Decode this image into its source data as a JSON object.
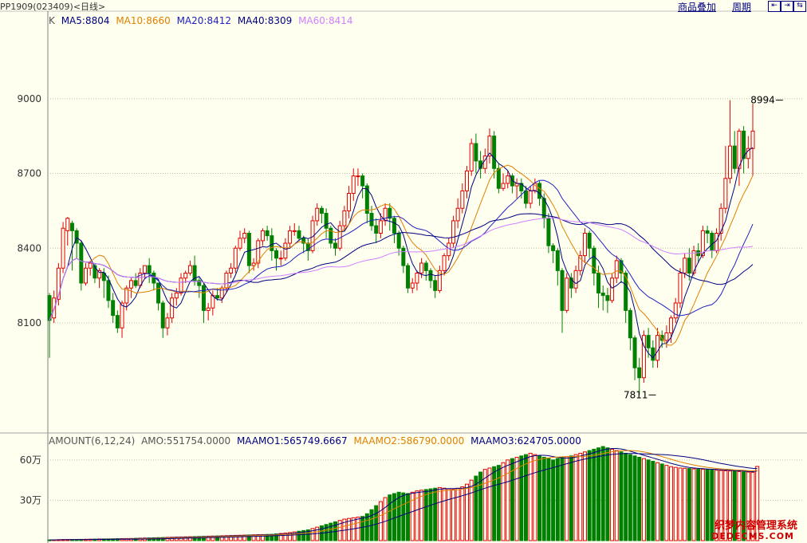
{
  "header": {
    "symbol": "PP1909(023409)<日线>",
    "overlay_link": "商品叠加",
    "period_link": "周期",
    "nav_buttons": [
      "⇤",
      "⇥",
      "⇆"
    ]
  },
  "price_legend": {
    "k": "K",
    "items": [
      {
        "text": "MA5:8804",
        "color": "#000080"
      },
      {
        "text": "MA10:8660",
        "color": "#e08000"
      },
      {
        "text": "MA20:8412",
        "color": "#2020c0"
      },
      {
        "text": "MA40:8309",
        "color": "#000080"
      },
      {
        "text": "MA60:8414",
        "color": "#d080ff"
      }
    ]
  },
  "volume_legend": {
    "items": [
      {
        "text": "AMOUNT(6,12,24)",
        "color": "#555555"
      },
      {
        "text": "AMO:551754.0000",
        "color": "#555555"
      },
      {
        "text": "MAAMO1:565749.6667",
        "color": "#000080"
      },
      {
        "text": "MAAMO2:586790.0000",
        "color": "#e08000"
      },
      {
        "text": "MAAMO3:624705.0000",
        "color": "#000080"
      }
    ]
  },
  "watermark": {
    "line1": "织梦内容管理系统",
    "line2": "DEDECMS.COM"
  },
  "colors": {
    "up": "#e00000",
    "down": "#008000",
    "grid": "#c0c0a0",
    "bg": "#fffff0"
  },
  "chart_data": [
    {
      "type": "candlestick",
      "ylim": [
        7700,
        9300
      ],
      "yticks": [
        8100,
        8400,
        8700,
        9000
      ],
      "ytick_labels": [
        "8100",
        "8400",
        "8700",
        "9000"
      ],
      "annotations": [
        {
          "text": "8994",
          "x": 162,
          "y": 8994
        },
        {
          "text": "7811",
          "x": 134,
          "y": 7811
        }
      ],
      "candles": [
        [
          8210,
          8110,
          8220,
          7960
        ],
        [
          8120,
          8200,
          8230,
          8100
        ],
        [
          8195,
          8320,
          8340,
          8170
        ],
        [
          8320,
          8480,
          8505,
          8300
        ],
        [
          8470,
          8520,
          8525,
          8410
        ],
        [
          8500,
          8470,
          8510,
          8310
        ],
        [
          8470,
          8420,
          8480,
          8360
        ],
        [
          8420,
          8260,
          8430,
          8230
        ],
        [
          8260,
          8320,
          8340,
          8250
        ],
        [
          8320,
          8340,
          8350,
          8290
        ],
        [
          8330,
          8280,
          8340,
          8260
        ],
        [
          8280,
          8310,
          8320,
          8240
        ],
        [
          8300,
          8270,
          8320,
          8200
        ],
        [
          8270,
          8190,
          8290,
          8160
        ],
        [
          8190,
          8130,
          8220,
          8100
        ],
        [
          8130,
          8080,
          8150,
          8060
        ],
        [
          8080,
          8180,
          8190,
          8040
        ],
        [
          8180,
          8240,
          8250,
          8150
        ],
        [
          8240,
          8270,
          8280,
          8200
        ],
        [
          8270,
          8250,
          8300,
          8240
        ],
        [
          8250,
          8300,
          8320,
          8240
        ],
        [
          8300,
          8330,
          8330,
          8280
        ],
        [
          8330,
          8300,
          8360,
          8260
        ],
        [
          8300,
          8260,
          8310,
          8230
        ],
        [
          8260,
          8180,
          8260,
          8150
        ],
        [
          8180,
          8080,
          8190,
          8040
        ],
        [
          8080,
          8120,
          8140,
          8050
        ],
        [
          8120,
          8200,
          8220,
          8100
        ],
        [
          8200,
          8220,
          8240,
          8170
        ],
        [
          8220,
          8280,
          8300,
          8210
        ],
        [
          8280,
          8300,
          8310,
          8260
        ],
        [
          8300,
          8330,
          8350,
          8290
        ],
        [
          8330,
          8270,
          8370,
          8250
        ],
        [
          8270,
          8250,
          8280,
          8200
        ],
        [
          8250,
          8150,
          8260,
          8100
        ],
        [
          8150,
          8160,
          8180,
          8110
        ],
        [
          8160,
          8210,
          8230,
          8130
        ],
        [
          8210,
          8200,
          8240,
          8190
        ],
        [
          8200,
          8240,
          8250,
          8180
        ],
        [
          8240,
          8300,
          8310,
          8220
        ],
        [
          8300,
          8320,
          8340,
          8280
        ],
        [
          8320,
          8400,
          8410,
          8300
        ],
        [
          8400,
          8440,
          8470,
          8390
        ],
        [
          8440,
          8460,
          8480,
          8420
        ],
        [
          8460,
          8330,
          8470,
          8300
        ],
        [
          8330,
          8340,
          8360,
          8310
        ],
        [
          8340,
          8430,
          8440,
          8320
        ],
        [
          8430,
          8470,
          8480,
          8410
        ],
        [
          8470,
          8450,
          8490,
          8430
        ],
        [
          8450,
          8390,
          8480,
          8350
        ],
        [
          8390,
          8360,
          8400,
          8310
        ],
        [
          8360,
          8360,
          8390,
          8330
        ],
        [
          8360,
          8420,
          8440,
          8350
        ],
        [
          8420,
          8470,
          8490,
          8400
        ],
        [
          8470,
          8470,
          8500,
          8450
        ],
        [
          8470,
          8440,
          8490,
          8430
        ],
        [
          8440,
          8420,
          8450,
          8380
        ],
        [
          8420,
          8390,
          8440,
          8350
        ],
        [
          8390,
          8510,
          8530,
          8380
        ],
        [
          8510,
          8560,
          8580,
          8490
        ],
        [
          8560,
          8540,
          8570,
          8500
        ],
        [
          8540,
          8480,
          8560,
          8440
        ],
        [
          8480,
          8420,
          8490,
          8400
        ],
        [
          8420,
          8400,
          8440,
          8370
        ],
        [
          8400,
          8490,
          8510,
          8390
        ],
        [
          8490,
          8550,
          8570,
          8470
        ],
        [
          8550,
          8620,
          8650,
          8520
        ],
        [
          8620,
          8690,
          8720,
          8590
        ],
        [
          8690,
          8690,
          8720,
          8650
        ],
        [
          8690,
          8650,
          8700,
          8600
        ],
        [
          8650,
          8540,
          8660,
          8500
        ],
        [
          8540,
          8490,
          8570,
          8470
        ],
        [
          8490,
          8460,
          8520,
          8420
        ],
        [
          8460,
          8510,
          8540,
          8440
        ],
        [
          8510,
          8560,
          8580,
          8490
        ],
        [
          8560,
          8520,
          8580,
          8470
        ],
        [
          8520,
          8460,
          8530,
          8420
        ],
        [
          8460,
          8400,
          8470,
          8370
        ],
        [
          8400,
          8330,
          8410,
          8300
        ],
        [
          8330,
          8240,
          8340,
          8220
        ],
        [
          8240,
          8260,
          8280,
          8220
        ],
        [
          8260,
          8300,
          8310,
          8230
        ],
        [
          8300,
          8340,
          8360,
          8280
        ],
        [
          8340,
          8310,
          8350,
          8270
        ],
        [
          8310,
          8270,
          8320,
          8240
        ],
        [
          8270,
          8230,
          8290,
          8200
        ],
        [
          8230,
          8310,
          8330,
          8220
        ],
        [
          8310,
          8370,
          8380,
          8290
        ],
        [
          8370,
          8420,
          8440,
          8350
        ],
        [
          8420,
          8510,
          8530,
          8400
        ],
        [
          8510,
          8560,
          8600,
          8480
        ],
        [
          8560,
          8630,
          8660,
          8540
        ],
        [
          8630,
          8710,
          8730,
          8600
        ],
        [
          8710,
          8820,
          8840,
          8690
        ],
        [
          8820,
          8750,
          8860,
          8700
        ],
        [
          8750,
          8720,
          8790,
          8680
        ],
        [
          8720,
          8770,
          8800,
          8700
        ],
        [
          8770,
          8850,
          8880,
          8740
        ],
        [
          8850,
          8720,
          8870,
          8680
        ],
        [
          8720,
          8640,
          8740,
          8620
        ],
        [
          8640,
          8660,
          8700,
          8630
        ],
        [
          8660,
          8690,
          8710,
          8640
        ],
        [
          8690,
          8650,
          8700,
          8620
        ],
        [
          8650,
          8660,
          8680,
          8600
        ],
        [
          8660,
          8630,
          8680,
          8600
        ],
        [
          8630,
          8580,
          8650,
          8560
        ],
        [
          8580,
          8630,
          8650,
          8560
        ],
        [
          8630,
          8660,
          8680,
          8620
        ],
        [
          8660,
          8600,
          8670,
          8570
        ],
        [
          8600,
          8520,
          8620,
          8480
        ],
        [
          8520,
          8410,
          8540,
          8380
        ],
        [
          8410,
          8390,
          8420,
          8340
        ],
        [
          8390,
          8310,
          8400,
          8250
        ],
        [
          8310,
          8150,
          8320,
          8060
        ],
        [
          8150,
          8280,
          8300,
          8140
        ],
        [
          8280,
          8240,
          8300,
          8200
        ],
        [
          8240,
          8310,
          8330,
          8220
        ],
        [
          8310,
          8370,
          8390,
          8290
        ],
        [
          8370,
          8460,
          8480,
          8340
        ],
        [
          8460,
          8400,
          8470,
          8360
        ],
        [
          8400,
          8300,
          8410,
          8250
        ],
        [
          8300,
          8220,
          8330,
          8160
        ],
        [
          8220,
          8210,
          8250,
          8150
        ],
        [
          8210,
          8190,
          8240,
          8140
        ],
        [
          8190,
          8280,
          8300,
          8180
        ],
        [
          8280,
          8350,
          8370,
          8260
        ],
        [
          8350,
          8300,
          8360,
          8260
        ],
        [
          8300,
          8150,
          8310,
          8100
        ],
        [
          8150,
          8040,
          8160,
          7990
        ],
        [
          8040,
          7920,
          8050,
          7870
        ],
        [
          7920,
          7880,
          7960,
          7811
        ],
        [
          7880,
          8050,
          8070,
          7860
        ],
        [
          8050,
          8000,
          8080,
          7960
        ],
        [
          8000,
          7950,
          8030,
          7920
        ],
        [
          7950,
          8050,
          8080,
          7920
        ],
        [
          8050,
          8030,
          8070,
          8000
        ],
        [
          8030,
          8060,
          8090,
          8000
        ],
        [
          8060,
          8120,
          8130,
          8020
        ],
        [
          8120,
          8180,
          8200,
          8100
        ],
        [
          8180,
          8300,
          8320,
          8160
        ],
        [
          8300,
          8360,
          8380,
          8280
        ],
        [
          8360,
          8300,
          8400,
          8270
        ],
        [
          8300,
          8390,
          8410,
          8290
        ],
        [
          8390,
          8370,
          8420,
          8340
        ],
        [
          8370,
          8470,
          8490,
          8360
        ],
        [
          8470,
          8460,
          8490,
          8420
        ],
        [
          8460,
          8390,
          8470,
          8360
        ],
        [
          8390,
          8460,
          8480,
          8380
        ],
        [
          8460,
          8560,
          8580,
          8430
        ],
        [
          8560,
          8680,
          8810,
          8540
        ],
        [
          8680,
          8810,
          8994,
          8660
        ],
        [
          8810,
          8720,
          8870,
          8700
        ],
        [
          8720,
          8870,
          8880,
          8650
        ],
        [
          8870,
          8760,
          8890,
          8700
        ],
        [
          8760,
          8800,
          8850,
          8720
        ],
        [
          8800,
          8870,
          8980,
          8690
        ]
      ]
    },
    {
      "type": "bar",
      "ylim": [
        0,
        700000
      ],
      "yticks": [
        300000,
        600000
      ],
      "ytick_labels": [
        "30万",
        "60万"
      ],
      "values": [
        5000,
        6000,
        7000,
        7500,
        8000,
        8500,
        9000,
        9500,
        10000,
        10500,
        11000,
        12000,
        12500,
        13000,
        13500,
        14000,
        15000,
        15500,
        16000,
        17000,
        18000,
        19000,
        20000,
        21000,
        22000,
        23000,
        24000,
        25000,
        26000,
        27000,
        28000,
        29000,
        30000,
        31000,
        32000,
        33000,
        34000,
        35000,
        36000,
        37000,
        38000,
        39000,
        40000,
        41000,
        42000,
        43000,
        44000,
        45000,
        46000,
        47000,
        50000,
        53000,
        56000,
        60000,
        65000,
        70000,
        75000,
        80000,
        90000,
        100000,
        110000,
        120000,
        130000,
        140000,
        150000,
        160000,
        165000,
        170000,
        175000,
        180000,
        200000,
        230000,
        260000,
        290000,
        320000,
        340000,
        350000,
        360000,
        355000,
        350000,
        360000,
        370000,
        375000,
        380000,
        385000,
        390000,
        395000,
        390000,
        385000,
        380000,
        390000,
        400000,
        420000,
        450000,
        480000,
        510000,
        530000,
        540000,
        550000,
        560000,
        580000,
        600000,
        610000,
        620000,
        630000,
        640000,
        650000,
        640000,
        630000,
        620000,
        610000,
        600000,
        610000,
        620000,
        625000,
        630000,
        640000,
        650000,
        660000,
        670000,
        680000,
        690000,
        700000,
        690000,
        680000,
        670000,
        660000,
        650000,
        640000,
        630000,
        620000,
        610000,
        600000,
        590000,
        580000,
        570000,
        560000,
        550000,
        545000,
        540000,
        538000,
        536000,
        534000,
        532000,
        530000,
        528000,
        526000,
        524000,
        522000,
        520000,
        518000,
        516000,
        514000,
        512000,
        510000,
        508000,
        551754
      ]
    }
  ]
}
